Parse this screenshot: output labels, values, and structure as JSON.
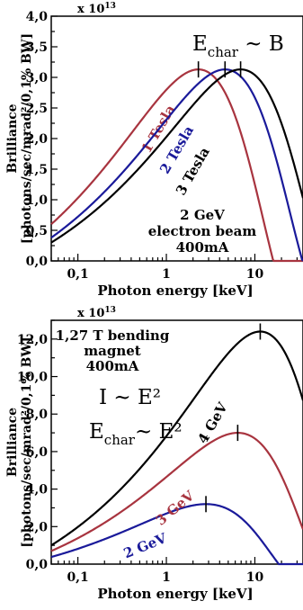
{
  "chart_data": [
    {
      "type": "line",
      "multiplier": "x 10",
      "multiplier_exp": "13",
      "ylabel_line1": "Brilliance",
      "ylabel_line2": "[photons/sec/mrad²/0,1% BW]",
      "xlabel": "Photon energy [keV]",
      "x_scale": "log",
      "xlim": [
        0.05,
        35
      ],
      "ylim": [
        0,
        4.0
      ],
      "x_ticks": [
        {
          "v": 0.1,
          "label": "0,1"
        },
        {
          "v": 1,
          "label": "1"
        },
        {
          "v": 10,
          "label": "10"
        }
      ],
      "y_ticks": [
        {
          "v": 0.0,
          "label": "0,0"
        },
        {
          "v": 0.5,
          "label": "0,5"
        },
        {
          "v": 1.0,
          "label": "1,0"
        },
        {
          "v": 1.5,
          "label": "1,5"
        },
        {
          "v": 2.0,
          "label": "2,0"
        },
        {
          "v": 2.5,
          "label": "2,5"
        },
        {
          "v": 3.0,
          "label": "3,0"
        },
        {
          "v": 3.5,
          "label": "3,5"
        },
        {
          "v": 4.0,
          "label": "4,0"
        }
      ],
      "formula": {
        "main": "E",
        "sub": "char",
        "rest": " ~ B"
      },
      "annotation": [
        "2 GeV",
        "electron beam",
        "400mA"
      ],
      "series": [
        {
          "name": "1 Tesla",
          "color": "#a8343f",
          "peak_x": 2.3,
          "peak_y": 3.13,
          "y_at_min": 0.6,
          "label_x": 0.9,
          "label_y": 2.12,
          "label_rot": -60
        },
        {
          "name": "2 Tesla",
          "color": "#1a1a9a",
          "peak_x": 4.6,
          "peak_y": 3.13,
          "y_at_min": 0.38,
          "label_x": 1.45,
          "label_y": 1.78,
          "label_rot": -60
        },
        {
          "name": "3 Tesla",
          "color": "#000000",
          "peak_x": 6.9,
          "peak_y": 3.13,
          "y_at_min": 0.3,
          "label_x": 2.2,
          "label_y": 1.43,
          "label_rot": -60
        }
      ]
    },
    {
      "type": "line",
      "multiplier": "x 10",
      "multiplier_exp": "13",
      "ylabel_line1": "Brilliance",
      "ylabel_line2": "[photons/sec/mrad²/0,1% BW]",
      "xlabel": "Photon energy [keV]",
      "x_scale": "log",
      "xlim": [
        0.05,
        35
      ],
      "ylim": [
        0,
        13.0
      ],
      "x_ticks": [
        {
          "v": 0.1,
          "label": "0,1"
        },
        {
          "v": 1,
          "label": "1"
        },
        {
          "v": 10,
          "label": "10"
        }
      ],
      "y_ticks": [
        {
          "v": 0.0,
          "label": "0,0"
        },
        {
          "v": 2.0,
          "label": "2,0"
        },
        {
          "v": 4.0,
          "label": "4,0"
        },
        {
          "v": 6.0,
          "label": "6,0"
        },
        {
          "v": 8.0,
          "label": "8,0"
        },
        {
          "v": 10.0,
          "label": "10,0"
        },
        {
          "v": 12.0,
          "label": "12,0"
        }
      ],
      "formula1": "I ~ E²",
      "formula2": {
        "main": "E",
        "sub": "char",
        "rest": "~ E²"
      },
      "annotation": [
        "1,27 T bending",
        "magnet",
        "400mA"
      ],
      "series": [
        {
          "name": "2 GeV",
          "color": "#1a1a9a",
          "peak_x": 2.8,
          "peak_y": 3.2,
          "y_at_min": 0.38,
          "label_x": 0.6,
          "label_y": 0.75,
          "label_rot": -22
        },
        {
          "name": "3 GeV",
          "color": "#a8343f",
          "peak_x": 6.4,
          "peak_y": 7.0,
          "y_at_min": 0.7,
          "label_x": 1.35,
          "label_y": 2.8,
          "label_rot": -40
        },
        {
          "name": "4 GeV",
          "color": "#000000",
          "peak_x": 11.5,
          "peak_y": 12.4,
          "y_at_min": 1.0,
          "label_x": 3.7,
          "label_y": 7.4,
          "label_rot": -60
        }
      ]
    }
  ]
}
